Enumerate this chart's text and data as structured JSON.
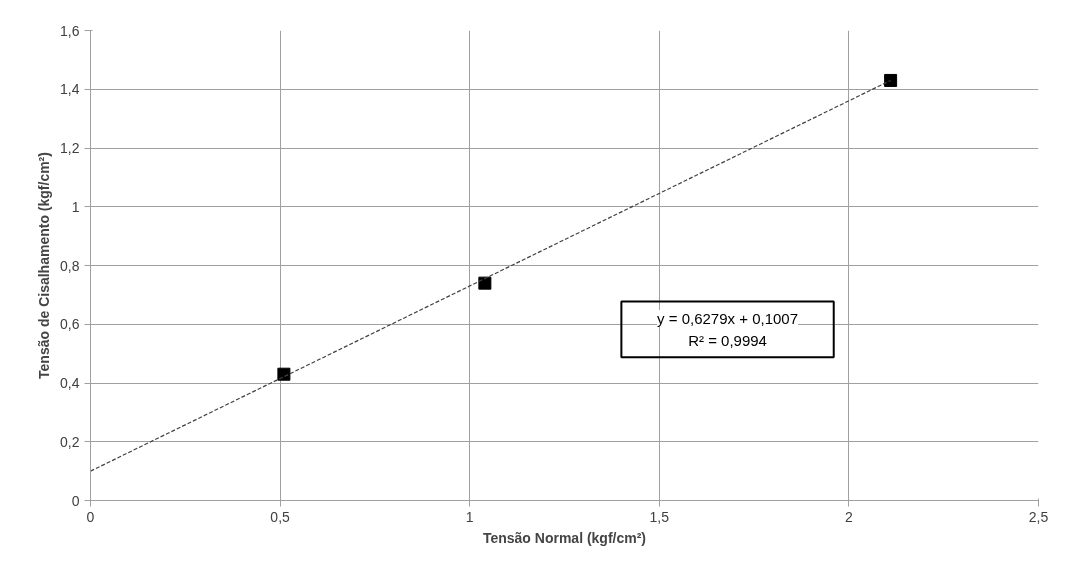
{
  "chart_data": {
    "type": "scatter",
    "xlabel": "Tensão Normal (kgf/cm²)",
    "ylabel": "Tensão de Cisalhamento (kgf/cm²)",
    "x": [
      0.51,
      1.04,
      2.11
    ],
    "series": [
      {
        "color": "#000000",
        "marker": "square",
        "values": [
          0.43,
          0.74,
          1.43
        ]
      },
      {
        "type": "line",
        "color": "#404040",
        "line_style": "dotted",
        "marker": "none",
        "x": [
          0,
          2.11
        ],
        "values": [
          0.1,
          1.43
        ]
      }
    ],
    "annotations": [
      "y = 0,6279x + 0,1007",
      "R² = 0,9994"
    ],
    "xlim": [
      0,
      2.5
    ],
    "xticks": [
      0,
      {
        "value": 0.5,
        "label": "0,5"
      },
      1,
      {
        "value": 1.5,
        "label": "1,5"
      },
      2,
      {
        "value": 2.5,
        "label": "2,5"
      }
    ],
    "ylim": [
      0,
      1.6
    ],
    "yticks": [
      0,
      {
        "value": 0.2,
        "label": "0,2"
      },
      {
        "value": 0.4,
        "label": "0,4"
      },
      {
        "value": 0.6,
        "label": "0,6"
      },
      {
        "value": 0.8,
        "label": "0,8"
      },
      1,
      {
        "value": 1.2,
        "label": "1,2"
      },
      {
        "value": 1.4,
        "label": "1,4"
      },
      {
        "value": 1.6,
        "label": "1,6"
      }
    ],
    "grid": true
  }
}
